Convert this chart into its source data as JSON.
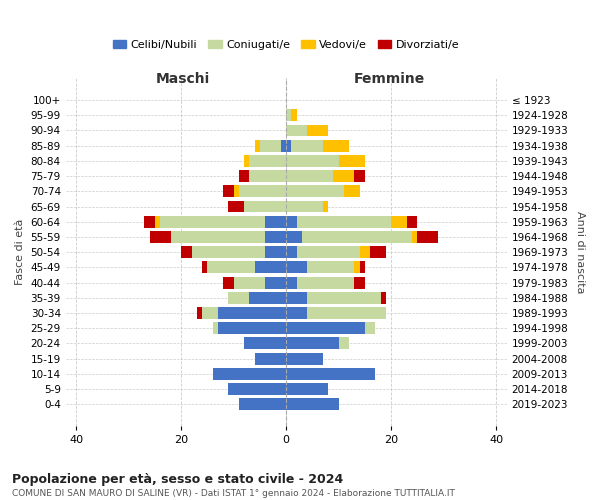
{
  "age_groups": [
    "100+",
    "95-99",
    "90-94",
    "85-89",
    "80-84",
    "75-79",
    "70-74",
    "65-69",
    "60-64",
    "55-59",
    "50-54",
    "45-49",
    "40-44",
    "35-39",
    "30-34",
    "25-29",
    "20-24",
    "15-19",
    "10-14",
    "5-9",
    "0-4"
  ],
  "birth_years": [
    "≤ 1923",
    "1924-1928",
    "1929-1933",
    "1934-1938",
    "1939-1943",
    "1944-1948",
    "1949-1953",
    "1954-1958",
    "1959-1963",
    "1964-1968",
    "1969-1973",
    "1974-1978",
    "1979-1983",
    "1984-1988",
    "1989-1993",
    "1994-1998",
    "1999-2003",
    "2004-2008",
    "2009-2013",
    "2014-2018",
    "2019-2023"
  ],
  "colors": {
    "celibe": "#4472c4",
    "coniugato": "#c5d9a0",
    "vedovo": "#ffc000",
    "divorziato": "#c00000"
  },
  "males": {
    "celibe": [
      0,
      0,
      0,
      1,
      0,
      0,
      0,
      0,
      4,
      4,
      4,
      6,
      4,
      7,
      13,
      13,
      8,
      6,
      14,
      11,
      9
    ],
    "coniugato": [
      0,
      0,
      0,
      4,
      7,
      7,
      9,
      8,
      20,
      18,
      14,
      9,
      6,
      4,
      3,
      1,
      0,
      0,
      0,
      0,
      0
    ],
    "vedovo": [
      0,
      0,
      0,
      1,
      1,
      0,
      1,
      0,
      1,
      0,
      0,
      0,
      0,
      0,
      0,
      0,
      0,
      0,
      0,
      0,
      0
    ],
    "divorziato": [
      0,
      0,
      0,
      0,
      0,
      2,
      2,
      3,
      2,
      4,
      2,
      1,
      2,
      0,
      1,
      0,
      0,
      0,
      0,
      0,
      0
    ]
  },
  "females": {
    "nubile": [
      0,
      0,
      0,
      1,
      0,
      0,
      0,
      0,
      2,
      3,
      2,
      4,
      2,
      4,
      4,
      15,
      10,
      7,
      17,
      8,
      10
    ],
    "coniugata": [
      0,
      1,
      4,
      6,
      10,
      9,
      11,
      7,
      18,
      21,
      12,
      9,
      11,
      14,
      15,
      2,
      2,
      0,
      0,
      0,
      0
    ],
    "vedova": [
      0,
      1,
      4,
      5,
      5,
      4,
      3,
      1,
      3,
      1,
      2,
      1,
      0,
      0,
      0,
      0,
      0,
      0,
      0,
      0,
      0
    ],
    "divorziata": [
      0,
      0,
      0,
      0,
      0,
      2,
      0,
      0,
      2,
      4,
      3,
      1,
      2,
      1,
      0,
      0,
      0,
      0,
      0,
      0,
      0
    ]
  },
  "title": "Popolazione per età, sesso e stato civile - 2024",
  "subtitle": "COMUNE DI SAN MAURO DI SALINE (VR) - Dati ISTAT 1° gennaio 2024 - Elaborazione TUTTITALIA.IT",
  "xlabel_left": "Maschi",
  "xlabel_right": "Femmine",
  "ylabel_left": "Fasce di età",
  "ylabel_right": "Anni di nascita",
  "xlim": 42,
  "legend_labels": [
    "Celibi/Nubili",
    "Coniugati/e",
    "Vedovi/e",
    "Divorziati/e"
  ],
  "background_color": "#ffffff",
  "grid_color": "#cccccc"
}
